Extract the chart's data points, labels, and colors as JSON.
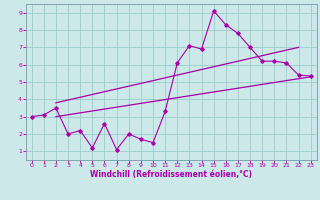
{
  "xlabel": "Windchill (Refroidissement éolien,°C)",
  "bg_color": "#cce8e8",
  "line_color": "#aa00aa",
  "grid_color": "#99cccc",
  "xlim": [
    -0.5,
    23.5
  ],
  "ylim": [
    0.5,
    9.5
  ],
  "xticks": [
    0,
    1,
    2,
    3,
    4,
    5,
    6,
    7,
    8,
    9,
    10,
    11,
    12,
    13,
    14,
    15,
    16,
    17,
    18,
    19,
    20,
    21,
    22,
    23
  ],
  "yticks": [
    1,
    2,
    3,
    4,
    5,
    6,
    7,
    8,
    9
  ],
  "line1_x": [
    0,
    1,
    2,
    3,
    4,
    5,
    6,
    7,
    8,
    9,
    10,
    11,
    12,
    13,
    14,
    15,
    16,
    17,
    18,
    19,
    20,
    21,
    22,
    23
  ],
  "line1_y": [
    3.0,
    3.1,
    3.5,
    2.0,
    2.2,
    1.2,
    2.6,
    1.1,
    2.0,
    1.7,
    1.5,
    3.3,
    6.1,
    7.1,
    6.9,
    9.1,
    8.3,
    7.8,
    7.0,
    6.2,
    6.2,
    6.1,
    5.4,
    5.35
  ],
  "line2_x": [
    2,
    22
  ],
  "line2_y": [
    3.8,
    7.0
  ],
  "line3_x": [
    2,
    23
  ],
  "line3_y": [
    3.0,
    5.3
  ],
  "spine_color": "#7799aa"
}
